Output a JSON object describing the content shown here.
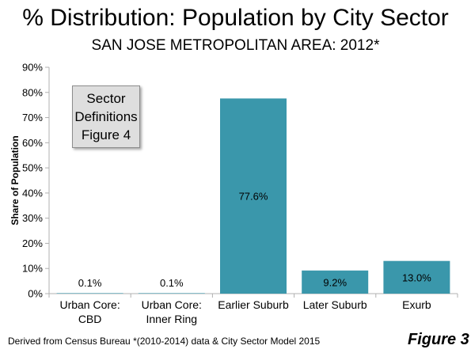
{
  "title": "% Distribution: Population by City Sector",
  "subtitle": "SAN JOSE METROPOLITAN AREA: 2012*",
  "definitions_box": [
    "Sector",
    "Definitions",
    "Figure 4"
  ],
  "footer": "Derived from Census Bureau *(2010-2014) data & City Sector Model 2015",
  "figure_label": "Figure 3",
  "colors": {
    "bar": "#3a97ab",
    "axis": "#b0b0b0"
  },
  "chart_data": {
    "type": "bar",
    "categories": [
      [
        "Urban Core:",
        "CBD"
      ],
      [
        "Urban Core:",
        "Inner Ring"
      ],
      [
        "Earlier Suburb"
      ],
      [
        "Later Suburb"
      ],
      [
        "Exurb"
      ]
    ],
    "values": [
      0.1,
      0.1,
      77.6,
      9.2,
      13.0
    ],
    "data_labels": [
      "0.1%",
      "0.1%",
      "77.6%",
      "9.2%",
      "13.0%"
    ],
    "ylabel": "Share of Population",
    "ylim": [
      0,
      90
    ],
    "yticks": [
      0,
      10,
      20,
      30,
      40,
      50,
      60,
      70,
      80,
      90
    ],
    "ytick_labels": [
      "0%",
      "10%",
      "20%",
      "30%",
      "40%",
      "50%",
      "60%",
      "70%",
      "80%",
      "90%"
    ],
    "grid": false,
    "legend": "none"
  }
}
